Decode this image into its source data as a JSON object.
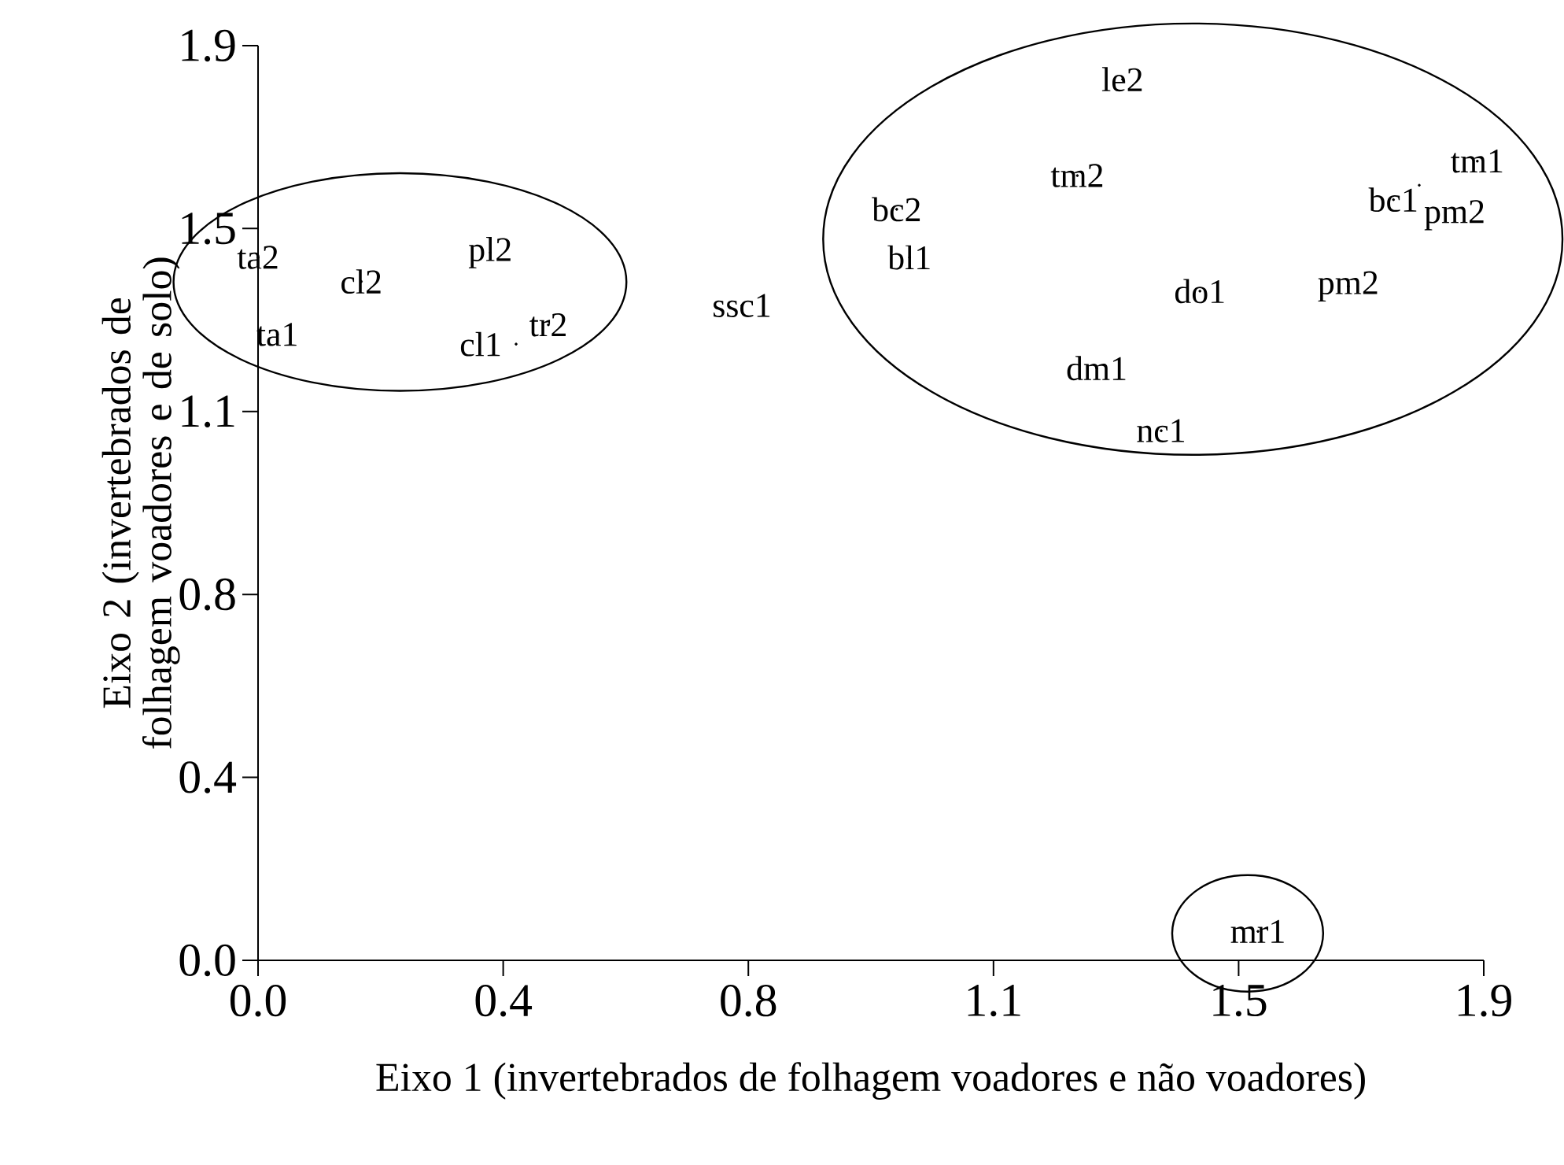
{
  "chart_data": {
    "type": "scatter",
    "xlabel": "Eixo 1 (invertebrados de folhagem voadores e não voadores)",
    "ylabel": "Eixo 2 (invertebrados de folhagem voadores e de solo)",
    "xlim": [
      0,
      1.9
    ],
    "ylim": [
      0,
      1.9
    ],
    "xticks": [
      {
        "value": 0,
        "label": "0.0"
      },
      {
        "value": 0.38,
        "label": "0.4"
      },
      {
        "value": 0.76,
        "label": "0.8"
      },
      {
        "value": 1.14,
        "label": "1.1"
      },
      {
        "value": 1.52,
        "label": "1.5"
      },
      {
        "value": 1.9,
        "label": "1.9"
      }
    ],
    "yticks": [
      {
        "value": 0,
        "label": "0.0"
      },
      {
        "value": 0.38,
        "label": "0.4"
      },
      {
        "value": 0.76,
        "label": "0.8"
      },
      {
        "value": 1.14,
        "label": "1.1"
      },
      {
        "value": 1.52,
        "label": "1.5"
      },
      {
        "value": 1.9,
        "label": "1.9"
      }
    ],
    "grid": false,
    "series": [
      {
        "color": "#000000",
        "x": [
          0.0,
          0.16,
          0.36,
          0.03,
          0.45,
          0.4,
          0.75,
          0.99,
          1.01,
          1.34,
          1.27,
          1.76,
          1.89,
          1.8,
          1.69,
          1.46,
          1.3,
          1.4,
          1.55
        ],
        "values": [
          1.46,
          1.41,
          1.47,
          1.3,
          1.32,
          1.28,
          1.36,
          1.56,
          1.46,
          1.83,
          1.63,
          1.58,
          1.66,
          1.61,
          1.4,
          1.39,
          1.23,
          1.1,
          0.06
        ],
        "value_labels": [
          "ta2",
          "cl2",
          "pl2",
          "ta1",
          "tr2",
          "cl1",
          "ssc1",
          "bc2",
          "bl1",
          "le2",
          "tm2",
          "bc1",
          "tm1",
          "pm2",
          "pm2",
          "do1",
          "dm1",
          "nc1",
          "mr1"
        ]
      }
    ]
  }
}
